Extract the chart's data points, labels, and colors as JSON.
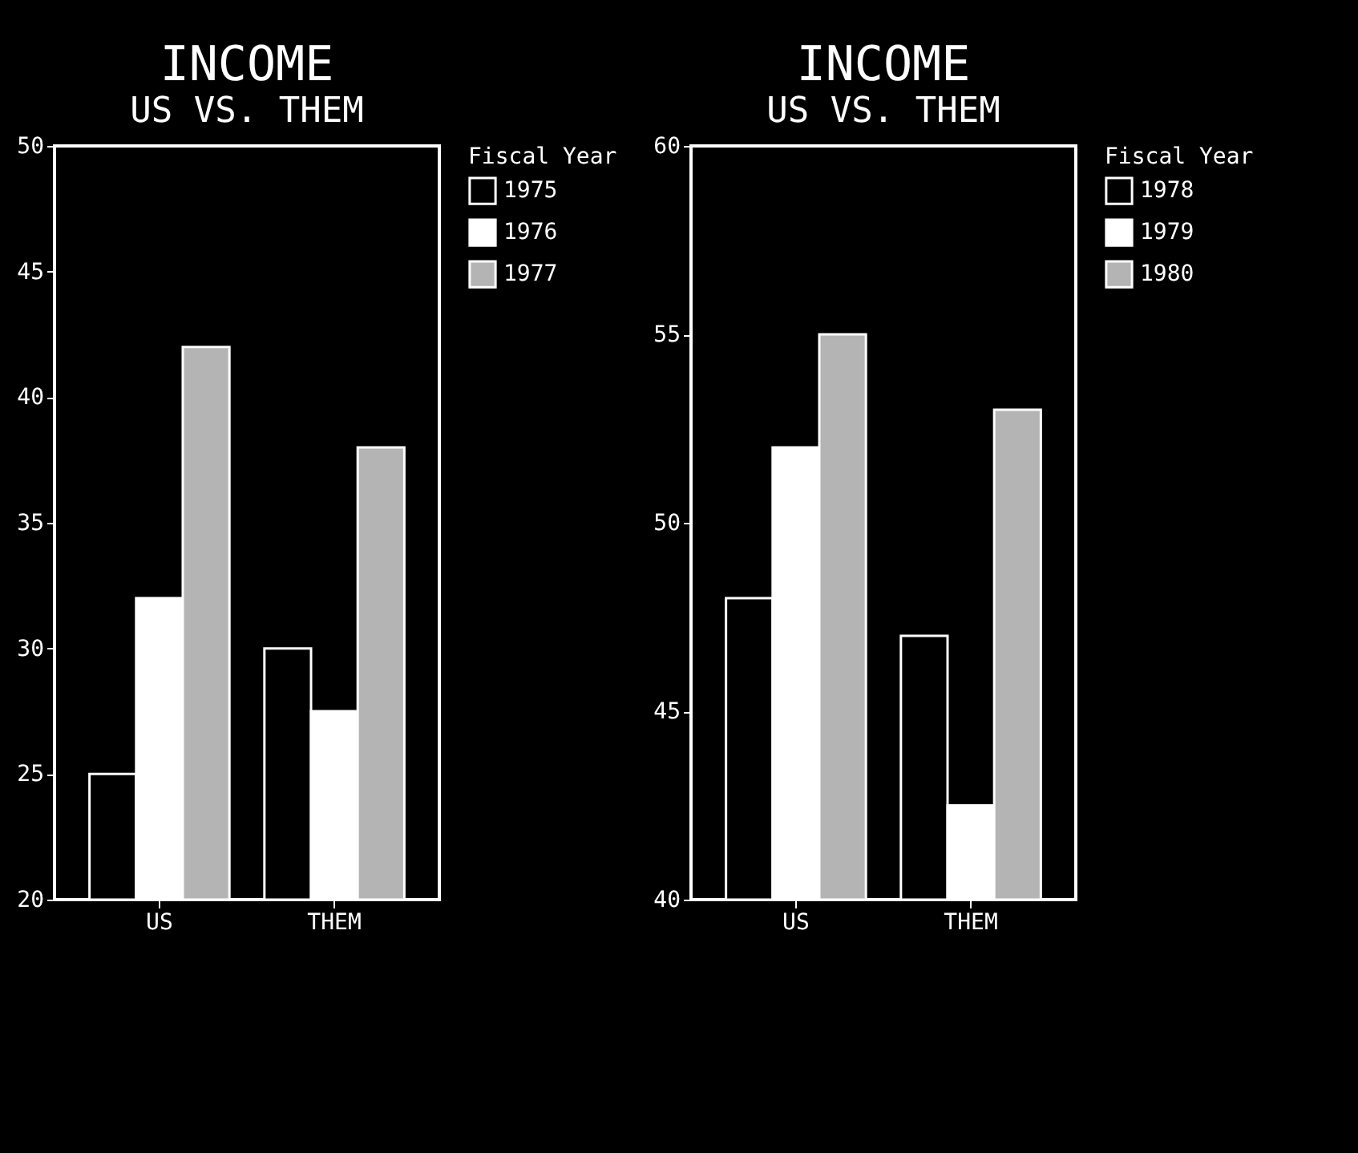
{
  "chart_data": [
    {
      "type": "bar",
      "title": "INCOME",
      "subtitle": "US VS. THEM",
      "categories": [
        "US",
        "THEM"
      ],
      "legend_title": "Fiscal Year",
      "legend": "right",
      "grid": false,
      "ylim": [
        20,
        50
      ],
      "yticks": [
        20,
        25,
        30,
        35,
        40,
        45,
        50
      ],
      "series": [
        {
          "name": "1975",
          "color": "#000000",
          "values": [
            25,
            30
          ]
        },
        {
          "name": "1976",
          "color": "#ffffff",
          "values": [
            32,
            27.5
          ]
        },
        {
          "name": "1977",
          "color": "#b4b4b4",
          "values": [
            42,
            38
          ]
        }
      ]
    },
    {
      "type": "bar",
      "title": "INCOME",
      "subtitle": "US VS. THEM",
      "categories": [
        "US",
        "THEM"
      ],
      "legend_title": "Fiscal Year",
      "legend": "right",
      "grid": false,
      "ylim": [
        40,
        60
      ],
      "yticks": [
        40,
        45,
        50,
        55,
        60
      ],
      "series": [
        {
          "name": "1978",
          "color": "#000000",
          "values": [
            48,
            47
          ]
        },
        {
          "name": "1979",
          "color": "#ffffff",
          "values": [
            52,
            42.5
          ]
        },
        {
          "name": "1980",
          "color": "#b4b4b4",
          "values": [
            55,
            53
          ]
        }
      ]
    }
  ]
}
